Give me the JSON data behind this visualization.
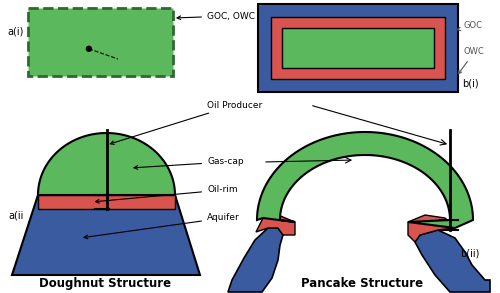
{
  "colors": {
    "green": "#5cb85c",
    "red": "#d9534f",
    "blue": "#3a5ba0",
    "black": "#000000",
    "white": "#ffffff",
    "dashed_border": "#2d6a2d",
    "gray_label": "#555555"
  },
  "labels": {
    "goc_owc": "GOC, OWC",
    "goc": "GOC",
    "owc": "OWC",
    "oil_producer": "Oil Producer",
    "gas_cap": "Gas-cap",
    "oil_rim": "Oil-rim",
    "aquifer": "Aquifer",
    "ai": "a(i)",
    "aii": "a(ii",
    "bi": "b(i)",
    "bii": "b(ii)",
    "doughnut": "Doughnut Structure",
    "pancake": "Pancake Structure"
  },
  "figsize": [
    5.0,
    2.93
  ],
  "dpi": 100
}
